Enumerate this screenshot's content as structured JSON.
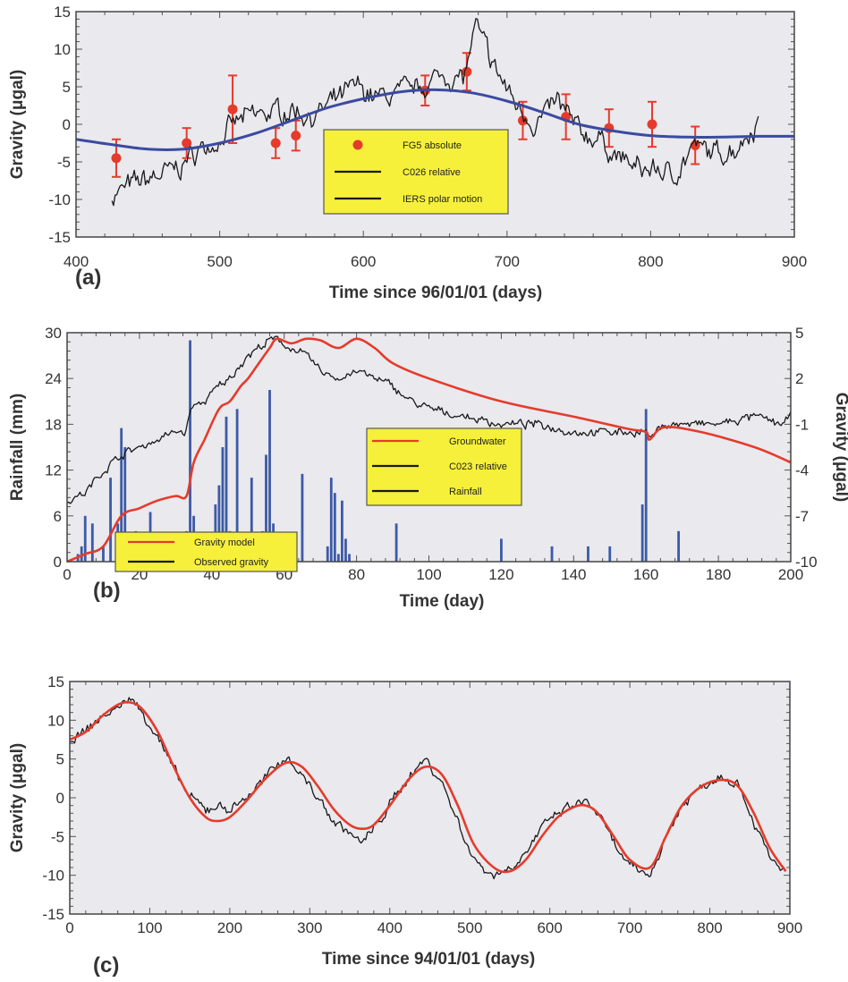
{
  "chart_data": [
    {
      "panel": "(a)",
      "type": "line",
      "xlabel": "Time since 96/01/01 (days)",
      "ylabel": "Gravity (μgal)",
      "xlim": [
        400,
        900
      ],
      "ylim": [
        -15,
        15
      ],
      "x_ticks": [
        "400",
        "500",
        "600",
        "700",
        "800",
        "900"
      ],
      "y_ticks": [
        "15",
        "10",
        "5",
        "0",
        "-5",
        "-10",
        "-15"
      ],
      "legend_position": "center-bottom",
      "legend": [
        "FG5 absolute",
        "C026 relative",
        "IERS polar motion"
      ],
      "colors": {
        "absolute": "#e53b2b",
        "relative": "#1a1a1a",
        "polar": "#3b4aa0",
        "legend_bg": "#f6f03a"
      },
      "series": [
        {
          "name": "FG5 absolute",
          "style": "points-with-errorbars",
          "x": [
            428,
            477,
            509,
            539,
            553,
            643,
            672,
            711,
            741,
            771,
            801,
            831
          ],
          "y": [
            -4.5,
            -2.5,
            2,
            -2.5,
            -1.5,
            4.5,
            7,
            0.5,
            1,
            -0.5,
            0,
            -2.8
          ],
          "err": [
            2.5,
            2,
            4.5,
            2,
            2,
            2,
            2.5,
            2.5,
            3,
            2.5,
            3,
            2.5
          ]
        },
        {
          "name": "C026 relative",
          "style": "line",
          "x": [
            425,
            440,
            455,
            470,
            485,
            500,
            510,
            520,
            535,
            550,
            565,
            580,
            595,
            610,
            625,
            640,
            655,
            670,
            678,
            690,
            705,
            720,
            735,
            750,
            765,
            775,
            790,
            805,
            815,
            830,
            845,
            860,
            875
          ],
          "y": [
            -9.5,
            -8,
            -7,
            -6,
            -3.5,
            -2,
            0,
            1,
            1.5,
            2,
            1,
            3,
            5,
            3.5,
            4,
            5,
            6.5,
            6,
            13,
            8,
            3,
            0,
            3,
            -1,
            -2,
            -4,
            -6,
            -6,
            -7,
            -3,
            -4,
            -3,
            0.5
          ]
        },
        {
          "name": "IERS polar motion",
          "style": "line",
          "x": [
            400,
            425,
            450,
            475,
            500,
            525,
            550,
            575,
            600,
            625,
            650,
            675,
            700,
            725,
            750,
            775,
            800,
            825,
            850,
            875,
            900
          ],
          "y": [
            -2,
            -2.7,
            -3.3,
            -3.3,
            -2.5,
            -1.2,
            0.5,
            2.2,
            3.4,
            4.3,
            4.6,
            4.2,
            3.1,
            1.6,
            0,
            -0.9,
            -1.5,
            -1.7,
            -1.7,
            -1.6,
            -1.6
          ]
        }
      ]
    },
    {
      "panel": "(b)",
      "type": "bar+line",
      "xlabel": "Time (day)",
      "ylabel": "Rainfall (mm)",
      "ylabel_right": "Gravity (μgal)",
      "xlim": [
        0,
        200
      ],
      "ylim": [
        0,
        30
      ],
      "ylim_right": [
        -10,
        5
      ],
      "x_ticks": [
        "0",
        "20",
        "40",
        "60",
        "80",
        "100",
        "120",
        "140",
        "160",
        "180",
        "200"
      ],
      "y_ticks": [
        "30",
        "24",
        "18",
        "12",
        "6",
        "0"
      ],
      "y_ticks_right": [
        "5",
        "2",
        "-1",
        "-4",
        "-7",
        "-10"
      ],
      "legend_position": "center",
      "legend": [
        "Groundwater",
        "C023 relative",
        "Rainfall"
      ],
      "colors": {
        "groundwater": "#e53b2b",
        "relative": "#1a1a1a",
        "rainfall": "#3d5aa6",
        "legend_bg": "#f6f03a"
      },
      "series": [
        {
          "name": "Rainfall",
          "style": "bar",
          "x": [
            3,
            4,
            5,
            7,
            10,
            12,
            14,
            15,
            16,
            17,
            19,
            20,
            21,
            23,
            25,
            30,
            33,
            34,
            35,
            37,
            38,
            39,
            40,
            41,
            42,
            43,
            44,
            45,
            46,
            47,
            48,
            50,
            51,
            54,
            55,
            56,
            57,
            59,
            65,
            72,
            73,
            74,
            75,
            76,
            77,
            78,
            91,
            120,
            134,
            144,
            150,
            159,
            160,
            169
          ],
          "y": [
            1,
            2,
            6,
            5,
            2,
            11,
            5,
            17.5,
            15,
            2,
            4,
            2,
            1,
            6.5,
            1,
            1,
            4,
            29,
            6,
            2,
            1,
            2,
            3,
            7.5,
            10,
            15,
            19,
            4,
            3,
            20,
            3,
            2,
            11,
            4,
            14,
            22.5,
            5,
            1,
            11.5,
            2,
            11,
            9,
            1,
            8,
            3,
            1,
            5,
            3,
            2,
            2,
            2,
            7.5,
            20,
            4
          ]
        },
        {
          "name": "C023 relative",
          "style": "line",
          "axis": "right",
          "x": [
            0,
            5,
            10,
            15,
            20,
            25,
            30,
            33,
            34,
            38,
            42,
            45,
            48,
            50,
            53,
            56,
            58,
            62,
            66,
            70,
            75,
            80,
            85,
            90,
            95,
            100,
            110,
            120,
            130,
            140,
            150,
            155,
            158,
            160,
            161,
            165,
            170,
            180,
            190,
            198,
            200
          ],
          "y": [
            -6,
            -5.5,
            -4,
            -3,
            -2.5,
            -2,
            -1.5,
            -1.5,
            0,
            0.5,
            1.5,
            2,
            3,
            3.5,
            4,
            4.5,
            4.5,
            4,
            3.5,
            2.5,
            2,
            2.5,
            2,
            1.5,
            0.5,
            0,
            -0.5,
            -1,
            -1,
            -1.5,
            -1.5,
            -1.5,
            -1.5,
            -1.5,
            -2,
            -1,
            -1,
            -1,
            -0.5,
            -1,
            -0.5
          ]
        },
        {
          "name": "Groundwater",
          "style": "line",
          "axis": "right",
          "x": [
            0,
            5,
            10,
            15,
            20,
            25,
            30,
            33,
            35,
            38,
            42,
            45,
            48,
            50,
            53,
            56,
            58,
            62,
            66,
            70,
            75,
            80,
            85,
            90,
            100,
            120,
            140,
            155,
            160,
            161,
            165,
            175,
            190,
            200
          ],
          "y": [
            -10,
            -9.5,
            -9,
            -7,
            -6.5,
            -6,
            -5.7,
            -5.7,
            -3.5,
            -2,
            0,
            0.5,
            1.5,
            2,
            3,
            4,
            4.6,
            4.3,
            4.6,
            4.5,
            4,
            4.6,
            4,
            3,
            2,
            0.5,
            -0.5,
            -1.3,
            -1.5,
            -2,
            -1.2,
            -1.5,
            -2.5,
            -3.5
          ]
        }
      ]
    },
    {
      "panel": "(c)",
      "type": "line",
      "xlabel": "Time since 94/01/01 (days)",
      "ylabel": "Gravity (μgal)",
      "xlim": [
        0,
        900
      ],
      "ylim": [
        -15,
        15
      ],
      "x_ticks": [
        "0",
        "100",
        "200",
        "300",
        "400",
        "500",
        "600",
        "700",
        "800",
        "900"
      ],
      "y_ticks": [
        "15",
        "10",
        "5",
        "0",
        "-5",
        "-10",
        "-15"
      ],
      "legend_position": "bottom-left",
      "legend": [
        "Gravity model",
        "Observed gravity"
      ],
      "colors": {
        "model": "#e53b2b",
        "observed": "#1a1a1a",
        "legend_bg": "#f6f03a"
      },
      "series": [
        {
          "name": "Observed gravity",
          "style": "line",
          "x": [
            0,
            20,
            40,
            60,
            75,
            90,
            110,
            130,
            150,
            170,
            185,
            200,
            220,
            245,
            270,
            290,
            310,
            330,
            350,
            365,
            380,
            400,
            425,
            445,
            465,
            485,
            505,
            530,
            550,
            570,
            590,
            610,
            630,
            645,
            660,
            680,
            700,
            725,
            745,
            765,
            790,
            815,
            835,
            855,
            875,
            895
          ],
          "y": [
            7.5,
            8.5,
            10.5,
            11.5,
            13,
            11,
            8,
            3.5,
            0,
            -1.5,
            -1,
            -1.5,
            0,
            2.5,
            5.5,
            3,
            0,
            -3,
            -4.5,
            -6,
            -4,
            -1,
            3,
            5,
            2,
            -3,
            -8,
            -10,
            -9,
            -7,
            -4,
            -2,
            -1,
            -0.5,
            -2,
            -6,
            -9,
            -10,
            -5,
            -1,
            1.5,
            3,
            2,
            -3,
            -8,
            -9.5
          ]
        },
        {
          "name": "Gravity model",
          "style": "line",
          "x": [
            0,
            20,
            40,
            60,
            75,
            90,
            110,
            130,
            150,
            170,
            185,
            200,
            220,
            245,
            270,
            290,
            310,
            330,
            350,
            365,
            380,
            400,
            425,
            445,
            465,
            485,
            505,
            530,
            550,
            570,
            590,
            610,
            630,
            645,
            660,
            680,
            700,
            725,
            745,
            765,
            790,
            815,
            835,
            855,
            875,
            895
          ],
          "y": [
            7.5,
            8.5,
            10.5,
            12,
            12.3,
            11.5,
            8.5,
            4,
            0,
            -2.5,
            -3,
            -2.5,
            -0.5,
            2.5,
            4.5,
            4,
            1.5,
            -1.5,
            -3.5,
            -4,
            -3.5,
            -1,
            2.5,
            4,
            3,
            -1,
            -6,
            -9,
            -9.5,
            -8,
            -5,
            -2.5,
            -1.2,
            -1,
            -2,
            -5,
            -8,
            -9,
            -5,
            -1,
            1.5,
            2.3,
            1.5,
            -2,
            -6.5,
            -9.5
          ]
        }
      ]
    }
  ]
}
